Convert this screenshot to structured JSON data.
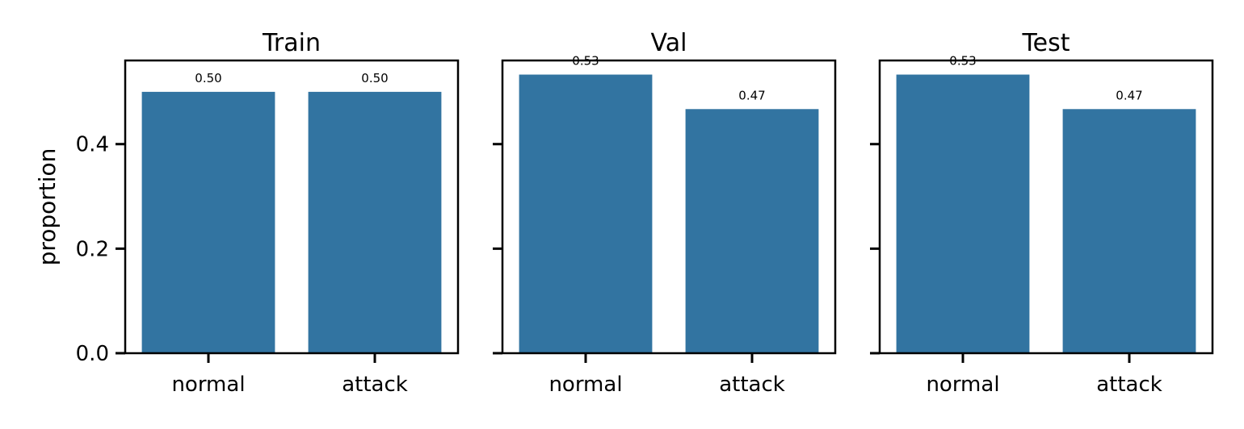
{
  "chart_data": [
    {
      "type": "bar",
      "title": "Train",
      "categories": [
        "normal",
        "attack"
      ],
      "values": [
        0.5,
        0.5
      ],
      "value_labels": [
        "0.50",
        "0.50"
      ],
      "ylabel": "proportion",
      "ylim": [
        0,
        0.56
      ],
      "yticks": [
        0.0,
        0.2,
        0.4
      ],
      "ytick_labels": [
        "0.0",
        "0.2",
        "0.4"
      ],
      "show_ytick_labels": true,
      "bar_color": "#3274a1",
      "grid": false
    },
    {
      "type": "bar",
      "title": "Val",
      "categories": [
        "normal",
        "attack"
      ],
      "values": [
        0.533,
        0.467
      ],
      "value_labels": [
        "0.53",
        "0.47"
      ],
      "ylabel": "",
      "ylim": [
        0,
        0.56
      ],
      "yticks": [
        0.0,
        0.2,
        0.4
      ],
      "ytick_labels": [
        "",
        "",
        ""
      ],
      "show_ytick_labels": false,
      "bar_color": "#3274a1",
      "grid": false
    },
    {
      "type": "bar",
      "title": "Test",
      "categories": [
        "normal",
        "attack"
      ],
      "values": [
        0.533,
        0.467
      ],
      "value_labels": [
        "0.53",
        "0.47"
      ],
      "ylabel": "",
      "ylim": [
        0,
        0.56
      ],
      "yticks": [
        0.0,
        0.2,
        0.4
      ],
      "ytick_labels": [
        "",
        "",
        ""
      ],
      "show_ytick_labels": false,
      "bar_color": "#3274a1",
      "grid": false
    }
  ]
}
